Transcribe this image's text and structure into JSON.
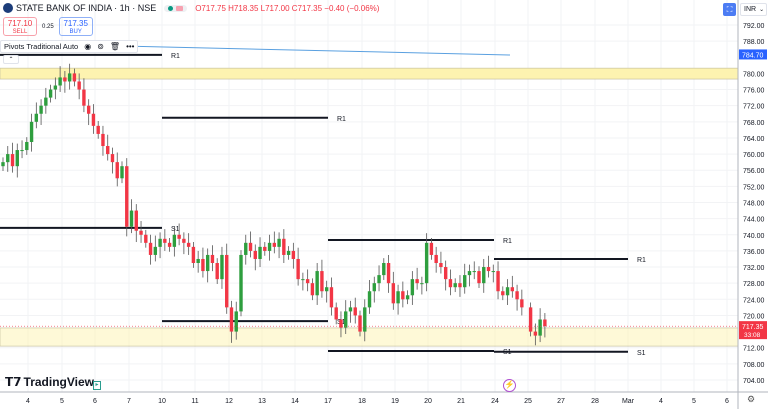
{
  "header": {
    "title": "STATE BANK OF INDIA · 1h · NSE",
    "open": "O717.75",
    "high": "H718.35",
    "low": "L717.00",
    "close": "C717.35",
    "change": "−0.40 (−0.06%)"
  },
  "trade": {
    "sell_price": "717.10",
    "sell_label": "SELL",
    "spread": "0.25",
    "buy_price": "717.35",
    "buy_label": "BUY"
  },
  "indicator": {
    "name": "Pivots Traditional Auto",
    "icons": [
      "eye-icon",
      "settings-icon",
      "trash-icon",
      "more-icon"
    ]
  },
  "currency": "INR",
  "colors": {
    "up": "#089981",
    "up_fill": "#2e9e3e",
    "down": "#f23645",
    "band": "#fdf3b0",
    "current_price": "#f23645",
    "marker": "#2962ff"
  },
  "price_axis": {
    "ticks": [
      "792.00",
      "788.00",
      "780.00",
      "776.00",
      "772.00",
      "768.00",
      "764.00",
      "760.00",
      "756.00",
      "752.00",
      "748.00",
      "744.00",
      "740.00",
      "736.00",
      "732.00",
      "728.00",
      "724.00",
      "720.00",
      "712.00",
      "708.00",
      "704.00"
    ],
    "marker_label": "784.70",
    "current_price": "717.35",
    "countdown": "33:08"
  },
  "time_axis": {
    "ticks": [
      "4",
      "5",
      "6",
      "7",
      "10",
      "11",
      "12",
      "13",
      "14",
      "17",
      "18",
      "19",
      "20",
      "21",
      "24",
      "25",
      "27",
      "28",
      "Mar",
      "4",
      "5",
      "6"
    ]
  },
  "pivots": [
    {
      "label": "R1",
      "price": 784.6
    },
    {
      "label": "S1",
      "price": 741.7
    },
    {
      "label": "R1",
      "price": 769.0
    },
    {
      "label": "S1",
      "price": 718.6
    },
    {
      "label": "R1",
      "price": 738.7
    },
    {
      "label": "S1",
      "price": 711.2
    },
    {
      "label": "R1",
      "price": 734.0
    },
    {
      "label": "S1",
      "price": 711.0
    }
  ],
  "zones": [
    {
      "from": 778.6,
      "to": 781.3
    },
    {
      "from": 712.4,
      "to": 716.9
    }
  ],
  "closes": [
    758,
    760,
    757,
    761,
    761,
    763,
    768,
    770,
    772,
    774,
    776,
    777,
    779,
    778,
    780,
    778,
    776,
    772,
    770,
    767,
    765,
    762,
    760,
    758,
    754,
    757,
    742,
    746,
    741,
    740,
    738,
    735,
    737,
    739,
    738,
    737,
    740,
    739,
    738,
    737,
    733,
    734,
    731,
    735,
    733,
    729,
    735,
    722,
    716,
    721,
    735,
    738,
    736,
    734,
    737,
    736,
    738,
    737,
    739,
    735,
    736,
    734,
    729,
    729,
    728,
    725,
    731,
    726,
    727,
    722,
    719,
    717,
    721,
    722,
    720,
    716,
    722,
    726,
    728,
    730,
    733,
    728,
    723,
    726,
    724,
    725,
    729,
    728,
    728,
    738,
    735,
    733,
    732,
    729,
    727,
    728,
    727,
    730,
    731,
    731,
    728,
    732,
    731,
    731,
    726,
    725,
    727,
    726,
    724,
    722,
    716,
    715,
    719,
    717.35
  ],
  "branding": {
    "logo": "TradingView"
  }
}
